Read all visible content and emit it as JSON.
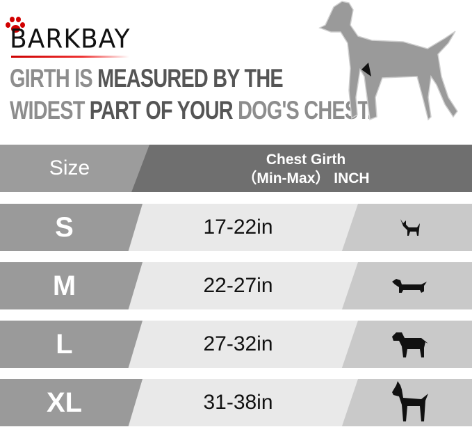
{
  "brand": {
    "logo_text": "BARKBAY",
    "accent_color": "#d10000"
  },
  "tagline": {
    "line1": [
      {
        "text": "GIRTH",
        "light": true
      },
      {
        "text": " IS ",
        "light": true
      },
      {
        "text": "MEASURED BY THE",
        "light": false
      }
    ],
    "line2": [
      {
        "text": "WIDEST",
        "light": true
      },
      {
        "text": " PART OF YOUR ",
        "light": false
      },
      {
        "text": "DOG'S CHEST.",
        "light": true
      }
    ]
  },
  "header": {
    "size_label": "Size",
    "girth_label_1": "Chest Girth",
    "girth_label_2": "（Min-Max） INCH"
  },
  "rows": [
    {
      "size": "S",
      "girth": "17-22in",
      "icon": "chihuahua-icon"
    },
    {
      "size": "M",
      "girth": "22-27in",
      "icon": "dachshund-icon"
    },
    {
      "size": "L",
      "girth": "27-32in",
      "icon": "labrador-icon"
    },
    {
      "size": "XL",
      "girth": "31-38in",
      "icon": "great-dane-icon"
    }
  ]
}
